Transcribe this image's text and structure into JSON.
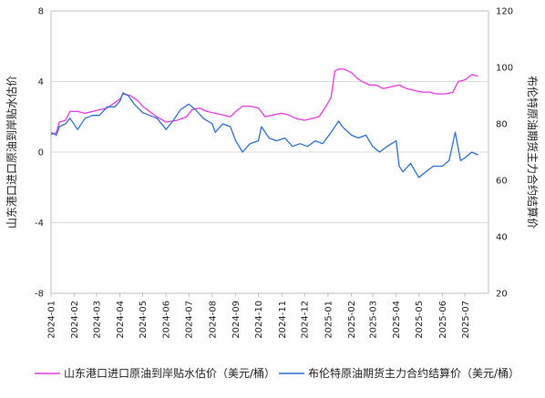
{
  "chart_data": {
    "type": "line",
    "x_ticks": [
      "2024-01",
      "2024-02",
      "2024-03",
      "2024-04",
      "2024-05",
      "2024-06",
      "2024-07",
      "2024-08",
      "2024-09",
      "2024-10",
      "2024-11",
      "2024-12",
      "2025-01",
      "2025-02",
      "2025-03",
      "2025-04",
      "2025-05",
      "2025-06",
      "2025-07"
    ],
    "y_left": {
      "label": "山东港口进口原油到岸贴水估价",
      "ticks": [
        8,
        4,
        0,
        -4,
        -8
      ],
      "range": [
        -8,
        8
      ]
    },
    "y_right": {
      "label": "布伦特原油期货主力合约结算价",
      "ticks": [
        120,
        100,
        80,
        60,
        40,
        20
      ],
      "range": [
        20,
        120
      ]
    },
    "grid": "horizontal",
    "legend_position": "bottom",
    "series": [
      {
        "name": "山东港口进口原油到岸贴水估价（美元/桶）",
        "axis": "left",
        "color": "#e83ae3",
        "points": [
          [
            "2024-01-01",
            1.0
          ],
          [
            "2024-01-08",
            1.1
          ],
          [
            "2024-01-12",
            1.7
          ],
          [
            "2024-01-20",
            1.8
          ],
          [
            "2024-01-26",
            2.3
          ],
          [
            "2024-02-05",
            2.3
          ],
          [
            "2024-02-15",
            2.2
          ],
          [
            "2024-02-25",
            2.3
          ],
          [
            "2024-03-05",
            2.4
          ],
          [
            "2024-03-15",
            2.5
          ],
          [
            "2024-03-25",
            2.8
          ],
          [
            "2024-04-01",
            3.0
          ],
          [
            "2024-04-05",
            3.3
          ],
          [
            "2024-04-15",
            3.2
          ],
          [
            "2024-04-25",
            2.9
          ],
          [
            "2024-05-01",
            2.6
          ],
          [
            "2024-05-10",
            2.3
          ],
          [
            "2024-05-20",
            2.0
          ],
          [
            "2024-06-01",
            1.7
          ],
          [
            "2024-06-15",
            1.8
          ],
          [
            "2024-06-28",
            2.0
          ],
          [
            "2024-07-05",
            2.4
          ],
          [
            "2024-07-15",
            2.5
          ],
          [
            "2024-07-25",
            2.3
          ],
          [
            "2024-08-05",
            2.2
          ],
          [
            "2024-08-15",
            2.1
          ],
          [
            "2024-08-25",
            2.0
          ],
          [
            "2024-09-01",
            2.3
          ],
          [
            "2024-09-10",
            2.6
          ],
          [
            "2024-09-20",
            2.6
          ],
          [
            "2024-10-01",
            2.5
          ],
          [
            "2024-10-10",
            2.0
          ],
          [
            "2024-10-20",
            2.1
          ],
          [
            "2024-11-01",
            2.2
          ],
          [
            "2024-11-10",
            2.1
          ],
          [
            "2024-11-20",
            1.9
          ],
          [
            "2024-12-01",
            1.8
          ],
          [
            "2024-12-10",
            1.9
          ],
          [
            "2024-12-20",
            2.0
          ],
          [
            "2024-12-28",
            2.5
          ],
          [
            "2025-01-05",
            3.1
          ],
          [
            "2025-01-10",
            4.6
          ],
          [
            "2025-01-15",
            4.7
          ],
          [
            "2025-01-22",
            4.7
          ],
          [
            "2025-02-01",
            4.5
          ],
          [
            "2025-02-08",
            4.2
          ],
          [
            "2025-02-15",
            4.0
          ],
          [
            "2025-02-25",
            3.8
          ],
          [
            "2025-03-05",
            3.8
          ],
          [
            "2025-03-15",
            3.6
          ],
          [
            "2025-03-25",
            3.7
          ],
          [
            "2025-04-05",
            3.8
          ],
          [
            "2025-04-15",
            3.6
          ],
          [
            "2025-04-25",
            3.5
          ],
          [
            "2025-05-05",
            3.4
          ],
          [
            "2025-05-15",
            3.4
          ],
          [
            "2025-05-25",
            3.3
          ],
          [
            "2025-06-05",
            3.3
          ],
          [
            "2025-06-15",
            3.4
          ],
          [
            "2025-06-22",
            4.0
          ],
          [
            "2025-07-01",
            4.1
          ],
          [
            "2025-07-10",
            4.4
          ],
          [
            "2025-07-18",
            4.3
          ]
        ]
      },
      {
        "name": "布伦特原油期货主力合约结算价（美元/桶）",
        "axis": "right",
        "color": "#2e6fd0",
        "points": [
          [
            "2024-01-01",
            77
          ],
          [
            "2024-01-08",
            76
          ],
          [
            "2024-01-12",
            79
          ],
          [
            "2024-01-20",
            80
          ],
          [
            "2024-01-26",
            82
          ],
          [
            "2024-02-05",
            78
          ],
          [
            "2024-02-15",
            82
          ],
          [
            "2024-02-25",
            83
          ],
          [
            "2024-03-05",
            83
          ],
          [
            "2024-03-15",
            86
          ],
          [
            "2024-03-25",
            86
          ],
          [
            "2024-04-01",
            88
          ],
          [
            "2024-04-05",
            91
          ],
          [
            "2024-04-12",
            90
          ],
          [
            "2024-04-20",
            87
          ],
          [
            "2024-05-01",
            84
          ],
          [
            "2024-05-10",
            83
          ],
          [
            "2024-05-20",
            82
          ],
          [
            "2024-06-01",
            78
          ],
          [
            "2024-06-10",
            81
          ],
          [
            "2024-06-20",
            85
          ],
          [
            "2024-07-01",
            87
          ],
          [
            "2024-07-10",
            85
          ],
          [
            "2024-07-20",
            82
          ],
          [
            "2024-08-01",
            80
          ],
          [
            "2024-08-05",
            77
          ],
          [
            "2024-08-15",
            80
          ],
          [
            "2024-08-25",
            79
          ],
          [
            "2024-09-01",
            74
          ],
          [
            "2024-09-10",
            70
          ],
          [
            "2024-09-20",
            73
          ],
          [
            "2024-10-01",
            74
          ],
          [
            "2024-10-05",
            79
          ],
          [
            "2024-10-15",
            75
          ],
          [
            "2024-10-25",
            74
          ],
          [
            "2024-11-05",
            75
          ],
          [
            "2024-11-15",
            72
          ],
          [
            "2024-11-25",
            73
          ],
          [
            "2024-12-05",
            72
          ],
          [
            "2024-12-15",
            74
          ],
          [
            "2024-12-25",
            73
          ],
          [
            "2025-01-05",
            77
          ],
          [
            "2025-01-15",
            81
          ],
          [
            "2025-01-20",
            79
          ],
          [
            "2025-02-01",
            76
          ],
          [
            "2025-02-10",
            75
          ],
          [
            "2025-02-20",
            76
          ],
          [
            "2025-03-01",
            72
          ],
          [
            "2025-03-10",
            70
          ],
          [
            "2025-03-20",
            72
          ],
          [
            "2025-04-01",
            74
          ],
          [
            "2025-04-05",
            65
          ],
          [
            "2025-04-10",
            63
          ],
          [
            "2025-04-20",
            66
          ],
          [
            "2025-05-01",
            61
          ],
          [
            "2025-05-10",
            63
          ],
          [
            "2025-05-20",
            65
          ],
          [
            "2025-06-01",
            65
          ],
          [
            "2025-06-10",
            67
          ],
          [
            "2025-06-18",
            77
          ],
          [
            "2025-06-25",
            67
          ],
          [
            "2025-07-01",
            68
          ],
          [
            "2025-07-10",
            70
          ],
          [
            "2025-07-18",
            69
          ]
        ]
      }
    ]
  }
}
